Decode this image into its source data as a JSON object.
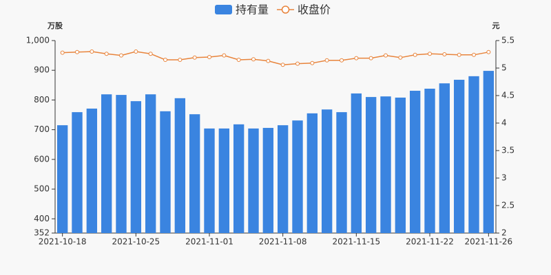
{
  "chart_data": {
    "type": "combo",
    "y_label": "万股",
    "y2_label": "元",
    "categories": [
      "2021-10-18",
      null,
      null,
      null,
      null,
      "2021-10-25",
      null,
      null,
      null,
      null,
      "2021-11-01",
      null,
      null,
      null,
      null,
      "2021-11-08",
      null,
      null,
      null,
      null,
      "2021-11-15",
      null,
      null,
      null,
      null,
      "2021-11-22",
      null,
      null,
      null,
      "2021-11-26"
    ],
    "series": [
      {
        "name": "持有量",
        "type": "bar",
        "color": "#3a84e0",
        "values": [
          715,
          759,
          771,
          819,
          817,
          796,
          819,
          762,
          806,
          752,
          704,
          704,
          718,
          704,
          706,
          715,
          731,
          755,
          768,
          759,
          822,
          810,
          812,
          808,
          831,
          838,
          856,
          868,
          880,
          898
        ]
      },
      {
        "name": "收盘价",
        "type": "line",
        "axis": "y2",
        "color": "#e8833a",
        "values": [
          5.28,
          5.29,
          5.3,
          5.26,
          5.23,
          5.3,
          5.26,
          5.15,
          5.15,
          5.19,
          5.2,
          5.23,
          5.15,
          5.16,
          5.13,
          5.06,
          5.08,
          5.09,
          5.14,
          5.14,
          5.18,
          5.18,
          5.23,
          5.19,
          5.24,
          5.26,
          5.25,
          5.24,
          5.24,
          5.29
        ]
      }
    ],
    "ylim": [
      352,
      1000
    ],
    "yticks": [
      352,
      400,
      500,
      600,
      700,
      800,
      900,
      {
        "value": 1000,
        "label": "1,000"
      }
    ],
    "y2lim": [
      2,
      5.5
    ],
    "y2ticks": [
      2,
      2.5,
      3,
      3.5,
      4,
      4.5,
      5,
      5.5
    ],
    "grid": false
  }
}
